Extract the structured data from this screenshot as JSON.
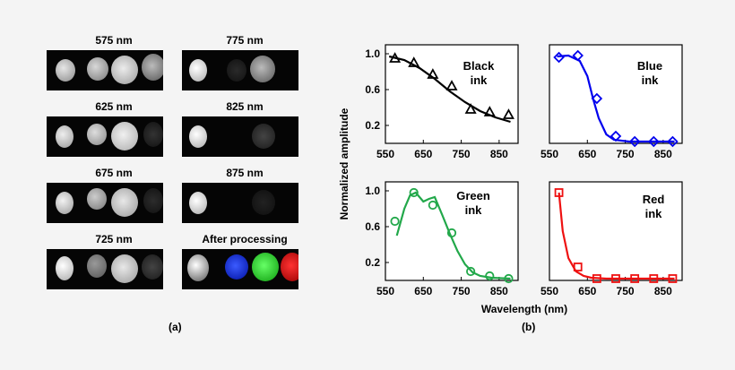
{
  "panel_a": {
    "labels": [
      "575 nm",
      "775 nm",
      "625 nm",
      "825 nm",
      "675 nm",
      "875 nm",
      "725 nm",
      "After processing"
    ],
    "caption": "(a)"
  },
  "panel_b": {
    "caption": "(b)",
    "ylabel": "Normalized amplitude",
    "xlabel": "Wavelength (nm)"
  },
  "chart_data": [
    {
      "type": "line",
      "title": "Black ink",
      "color": "#000000",
      "marker": "triangle",
      "xlim": [
        550,
        900
      ],
      "ylim": [
        0.0,
        1.1
      ],
      "xticks": [
        550,
        650,
        750,
        850
      ],
      "yticks": [
        0.2,
        0.6,
        1.0
      ],
      "points": {
        "x": [
          575,
          625,
          675,
          725,
          775,
          825,
          875
        ],
        "y": [
          0.95,
          0.9,
          0.77,
          0.64,
          0.38,
          0.35,
          0.32
        ]
      },
      "fit": {
        "x": [
          560,
          600,
          640,
          680,
          720,
          760,
          800,
          840,
          880
        ],
        "y": [
          0.97,
          0.93,
          0.84,
          0.72,
          0.58,
          0.46,
          0.36,
          0.29,
          0.24
        ]
      }
    },
    {
      "type": "line",
      "title": "Blue ink",
      "color": "#0000ee",
      "marker": "diamond",
      "xlim": [
        550,
        900
      ],
      "ylim": [
        0.0,
        1.1
      ],
      "xticks": [
        550,
        650,
        750,
        850
      ],
      "yticks": [],
      "points": {
        "x": [
          575,
          625,
          675,
          725,
          775,
          825,
          875
        ],
        "y": [
          0.96,
          0.98,
          0.5,
          0.08,
          0.02,
          0.02,
          0.02
        ]
      },
      "fit": {
        "x": [
          570,
          600,
          630,
          650,
          665,
          680,
          700,
          720,
          760,
          800,
          880
        ],
        "y": [
          0.97,
          0.98,
          0.92,
          0.75,
          0.5,
          0.28,
          0.1,
          0.04,
          0.02,
          0.02,
          0.02
        ]
      }
    },
    {
      "type": "line",
      "title": "Green ink",
      "color": "#22a84a",
      "marker": "circle",
      "xlim": [
        550,
        900
      ],
      "ylim": [
        0.0,
        1.1
      ],
      "xticks": [
        550,
        650,
        750,
        850
      ],
      "yticks": [
        0.2,
        0.6,
        1.0
      ],
      "points": {
        "x": [
          575,
          625,
          675,
          725,
          775,
          825,
          875
        ],
        "y": [
          0.66,
          0.98,
          0.84,
          0.53,
          0.1,
          0.05,
          0.02
        ]
      },
      "fit": {
        "x": [
          580,
          600,
          615,
          630,
          650,
          665,
          680,
          700,
          720,
          740,
          760,
          780,
          800,
          830,
          880
        ],
        "y": [
          0.5,
          0.8,
          0.95,
          0.98,
          0.88,
          0.91,
          0.93,
          0.73,
          0.52,
          0.33,
          0.18,
          0.09,
          0.05,
          0.03,
          0.02
        ]
      }
    },
    {
      "type": "line",
      "title": "Red ink",
      "color": "#ee1111",
      "marker": "square",
      "xlim": [
        550,
        900
      ],
      "ylim": [
        0.0,
        1.1
      ],
      "xticks": [
        550,
        650,
        750,
        850
      ],
      "yticks": [],
      "points": {
        "x": [
          575,
          625,
          675,
          725,
          775,
          825,
          875
        ],
        "y": [
          0.98,
          0.15,
          0.02,
          0.02,
          0.02,
          0.02,
          0.02
        ]
      },
      "fit": {
        "x": [
          575,
          585,
          600,
          620,
          640,
          660,
          700,
          760,
          880
        ],
        "y": [
          0.98,
          0.55,
          0.25,
          0.1,
          0.05,
          0.03,
          0.02,
          0.02,
          0.02
        ]
      }
    }
  ]
}
